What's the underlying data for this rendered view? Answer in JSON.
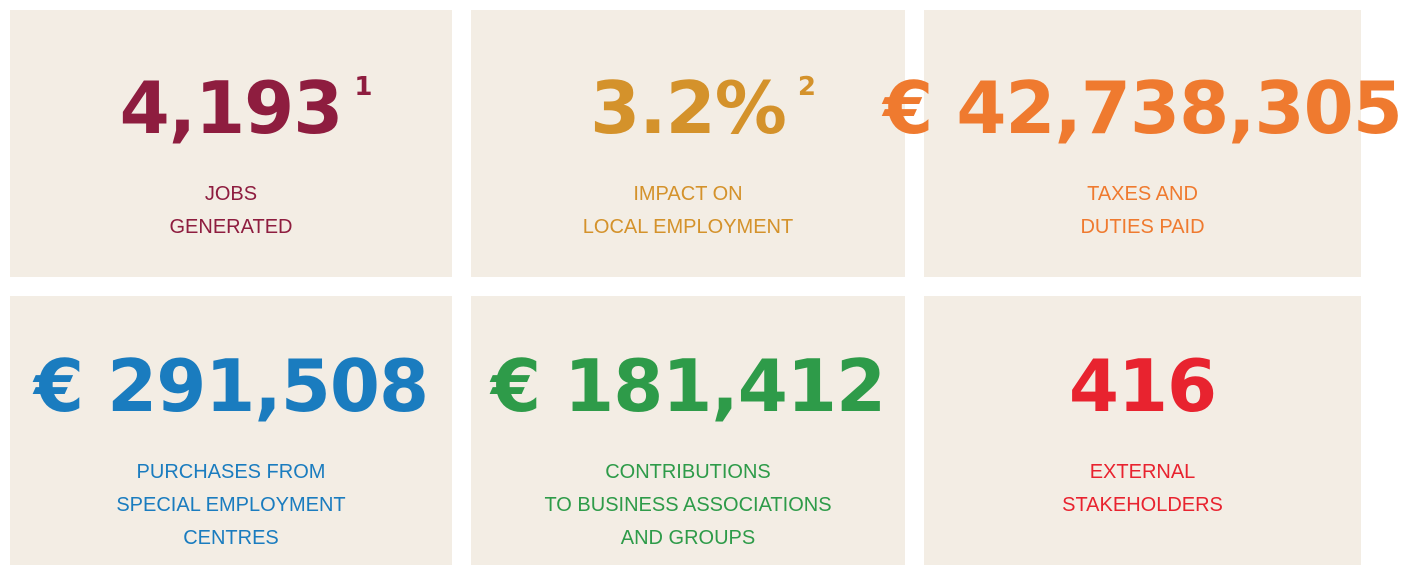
{
  "cards": [
    {
      "value": "4,193",
      "note": "1",
      "label": [
        "JOBS",
        "GENERATED"
      ],
      "color": "#8e1d3f"
    },
    {
      "value": "3.2%",
      "note": "2",
      "label": [
        "IMPACT ON",
        "LOCAL EMPLOYMENT"
      ],
      "color": "#d4922b"
    },
    {
      "value": "€ 42,738,305",
      "label": [
        "TAXES AND",
        "DUTIES PAID"
      ],
      "color": "#ef7a2f"
    },
    {
      "value": "€ 291,508",
      "label": [
        "PURCHASES FROM",
        "SPECIAL EMPLOYMENT",
        "CENTRES"
      ],
      "color": "#1a7cbf"
    },
    {
      "value": "€ 181,412",
      "label": [
        "CONTRIBUTIONS",
        "TO BUSINESS ASSOCIATIONS",
        "AND GROUPS"
      ],
      "color": "#2e9b49"
    },
    {
      "value": "416",
      "label": [
        "EXTERNAL",
        "STAKEHOLDERS"
      ],
      "color": "#e8232f"
    }
  ]
}
